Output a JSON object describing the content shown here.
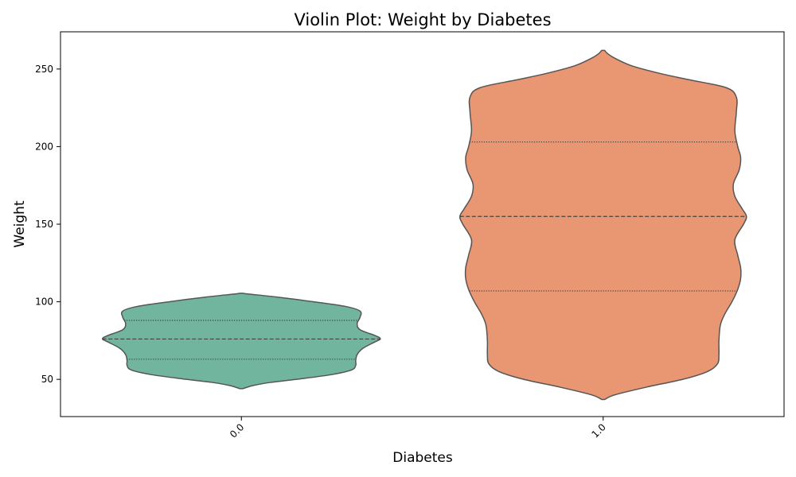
{
  "chart_data": {
    "type": "violin",
    "title": "Violin Plot: Weight by Diabetes",
    "xlabel": "Diabetes",
    "ylabel": "Weight",
    "ylim": [
      26,
      274
    ],
    "yticks": [
      50,
      100,
      150,
      200,
      250
    ],
    "grid": false,
    "legend": "none",
    "categories": [
      "0.0",
      "1.0"
    ],
    "violins": [
      {
        "category": "0.0",
        "color": "#72b59f",
        "quartiles": {
          "q1": 63,
          "median": 76,
          "q3": 88
        },
        "profile": [
          [
            44,
            0.01
          ],
          [
            46,
            0.08
          ],
          [
            48,
            0.2
          ],
          [
            50,
            0.38
          ],
          [
            53,
            0.62
          ],
          [
            56,
            0.76
          ],
          [
            59,
            0.79
          ],
          [
            62,
            0.79
          ],
          [
            66,
            0.8
          ],
          [
            70,
            0.84
          ],
          [
            74,
            0.92
          ],
          [
            76,
            0.96
          ],
          [
            78,
            0.93
          ],
          [
            82,
            0.82
          ],
          [
            86,
            0.8
          ],
          [
            90,
            0.82
          ],
          [
            94,
            0.82
          ],
          [
            97,
            0.72
          ],
          [
            100,
            0.5
          ],
          [
            103,
            0.25
          ],
          [
            105,
            0.05
          ],
          [
            105.5,
            0.01
          ]
        ]
      },
      {
        "category": "1.0",
        "color": "#e99673",
        "quartiles": {
          "q1": 107,
          "median": 155,
          "q3": 203
        },
        "profile": [
          [
            37,
            0.01
          ],
          [
            40,
            0.08
          ],
          [
            45,
            0.3
          ],
          [
            50,
            0.55
          ],
          [
            55,
            0.72
          ],
          [
            60,
            0.79
          ],
          [
            66,
            0.8
          ],
          [
            75,
            0.8
          ],
          [
            85,
            0.81
          ],
          [
            92,
            0.84
          ],
          [
            100,
            0.89
          ],
          [
            108,
            0.93
          ],
          [
            115,
            0.95
          ],
          [
            122,
            0.95
          ],
          [
            130,
            0.93
          ],
          [
            140,
            0.91
          ],
          [
            150,
            0.97
          ],
          [
            155,
            0.99
          ],
          [
            160,
            0.96
          ],
          [
            168,
            0.91
          ],
          [
            176,
            0.9
          ],
          [
            185,
            0.94
          ],
          [
            193,
            0.95
          ],
          [
            200,
            0.93
          ],
          [
            210,
            0.91
          ],
          [
            222,
            0.92
          ],
          [
            232,
            0.92
          ],
          [
            238,
            0.85
          ],
          [
            243,
            0.6
          ],
          [
            247,
            0.4
          ],
          [
            252,
            0.2
          ],
          [
            257,
            0.08
          ],
          [
            260,
            0.03
          ],
          [
            262,
            0.01
          ]
        ]
      }
    ]
  }
}
